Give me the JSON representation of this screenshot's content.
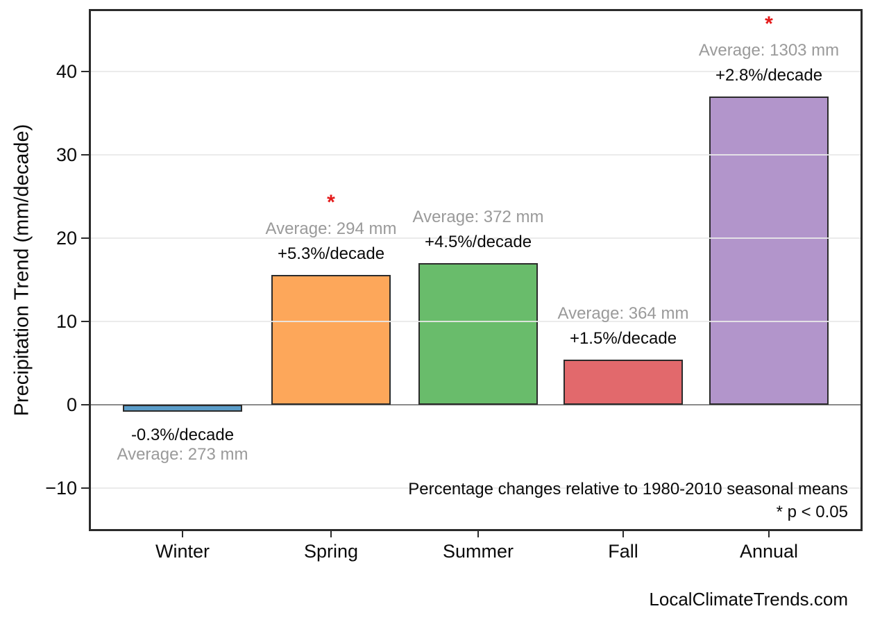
{
  "colors": {
    "background": "#ffffff",
    "frame": "#2b2b2b",
    "zero_line": "#8a8a8a",
    "gridline": "#e9e9e9",
    "text_black": "#0a0a0a",
    "text_gray": "#9a9a9a",
    "asterisk_red": "#e41a1a"
  },
  "chart_data": {
    "type": "bar",
    "title": "",
    "xlabel": "",
    "ylabel": "Precipitation Trend (mm/decade)",
    "categories": [
      "Winter",
      "Spring",
      "Summer",
      "Fall",
      "Annual"
    ],
    "values": [
      -0.8,
      15.6,
      17.0,
      5.4,
      37.0
    ],
    "units": "mm/decade",
    "bar_colors": [
      "#5B9DC9",
      "#FDA75A",
      "#69BC6B",
      "#E2696C",
      "#B295CB"
    ],
    "bar_edge_color": "#2b2b2b",
    "averages_mm": [
      273,
      294,
      372,
      364,
      1303
    ],
    "avg_labels": [
      "Average: 273 mm",
      "Average: 294 mm",
      "Average: 372 mm",
      "Average: 364 mm",
      "Average: 1303 mm"
    ],
    "pct_labels": [
      "-0.3%/decade",
      "+5.3%/decade",
      "+4.5%/decade",
      "+1.5%/decade",
      "+2.8%/decade"
    ],
    "significant": [
      false,
      true,
      false,
      false,
      true
    ],
    "significance_marker": "*",
    "ytick_values": [
      -10,
      0,
      10,
      20,
      30,
      40
    ],
    "ytick_labels": [
      "−10",
      "0",
      "10",
      "20",
      "30",
      "40"
    ],
    "ylim": [
      -15.2,
      47.5
    ],
    "grid": true,
    "legend": false,
    "annotations": {
      "line1": "Percentage changes relative to 1980-2010 seasonal means",
      "line2": "* p < 0.05"
    },
    "watermark": "LocalClimateTrends.com"
  }
}
